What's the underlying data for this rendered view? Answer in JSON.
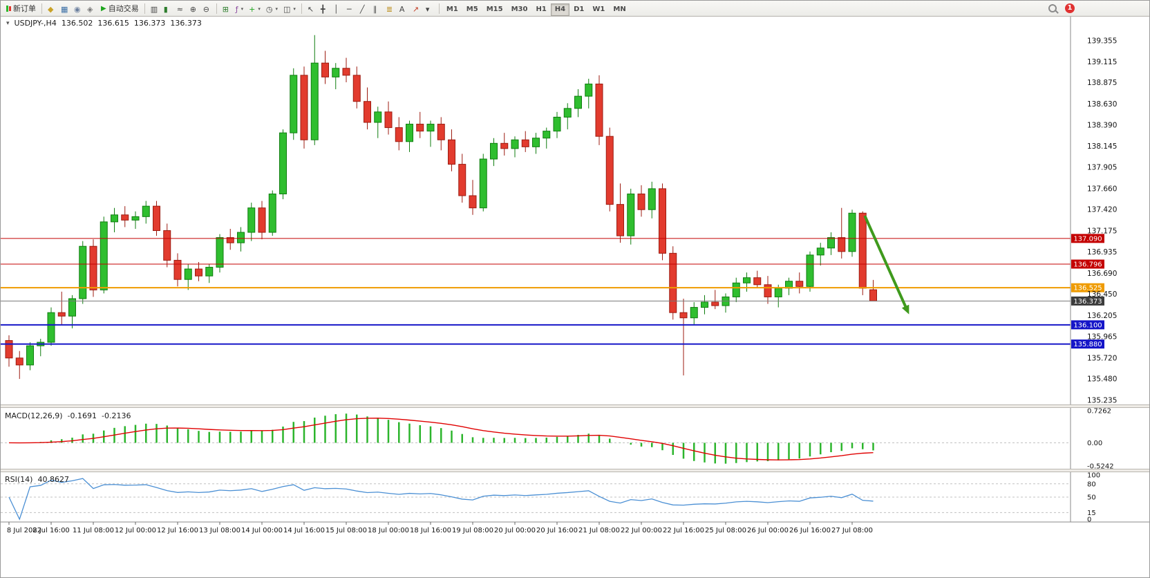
{
  "toolbar": {
    "new_order_label": "新订单",
    "autotrading_label": "自动交易",
    "notification_count": "1",
    "active_timeframe": "H4",
    "timeframes": [
      "M1",
      "M5",
      "M15",
      "M30",
      "H1",
      "H4",
      "D1",
      "W1",
      "MN"
    ],
    "group1": [
      {
        "name": "expert-advisors",
        "glyph": "◆",
        "color": "#c9a227"
      },
      {
        "name": "charts",
        "glyph": "▦",
        "color": "#3a6ea5"
      },
      {
        "name": "market-watch",
        "glyph": "◉",
        "color": "#6b7f9e"
      },
      {
        "name": "navigator",
        "glyph": "◈",
        "color": "#777777"
      }
    ],
    "group2": [
      {
        "name": "bar-chart-type",
        "glyph": "▥",
        "color": "#444444"
      },
      {
        "name": "candlestick-type",
        "glyph": "▮",
        "color": "#2d7d2d"
      },
      {
        "name": "line-chart-type",
        "glyph": "≈",
        "color": "#444444"
      },
      {
        "name": "zoom-in",
        "glyph": "⊕",
        "color": "#444444"
      },
      {
        "name": "zoom-out",
        "glyph": "⊖",
        "color": "#444444"
      }
    ],
    "group3": [
      {
        "name": "tile-windows",
        "glyph": "⊞",
        "color": "#2d7d2d"
      },
      {
        "name": "indicators",
        "glyph": "ƒ",
        "color": "#8a4a9e",
        "dropdown": true
      },
      {
        "name": "add-chart",
        "glyph": "+",
        "color": "#1da51d",
        "dropdown": true
      },
      {
        "name": "periods",
        "glyph": "◷",
        "color": "#444444",
        "dropdown": true
      },
      {
        "name": "templates",
        "glyph": "◫",
        "color": "#444444",
        "dropdown": true
      }
    ],
    "group4": [
      {
        "name": "cursor",
        "glyph": "↖",
        "color": "#444444"
      },
      {
        "name": "crosshair",
        "glyph": "╋",
        "color": "#444444"
      },
      {
        "name": "vertical-line",
        "glyph": "│",
        "color": "#444444"
      },
      {
        "name": "horizontal-line",
        "glyph": "─",
        "color": "#444444"
      },
      {
        "name": "trendline",
        "glyph": "╱",
        "color": "#444444"
      },
      {
        "name": "equidistant-channel",
        "glyph": "∥",
        "color": "#444444"
      },
      {
        "name": "fibonacci",
        "glyph": "≣",
        "color": "#b8860b"
      },
      {
        "name": "text-label",
        "glyph": "A",
        "color": "#444444"
      },
      {
        "name": "arrow-objects",
        "glyph": "↗",
        "color": "#c23b22"
      },
      {
        "name": "more-objects",
        "glyph": "▾",
        "color": "#444444"
      }
    ]
  },
  "chart_header": {
    "marker": "▾",
    "symbol": "USDJPY-,H4",
    "open": "136.502",
    "high": "136.615",
    "low": "136.373",
    "close": "136.373"
  },
  "panels": {
    "macd": {
      "label": "MACD(12,26,9)",
      "value": "-0.1691",
      "signal": "-0.2136",
      "ticks": [
        "0.7262",
        "0.00",
        "-0.5242"
      ],
      "range": [
        -0.5242,
        0.7262
      ],
      "histogram_color": "#2cb52c",
      "signal_color": "#e00000"
    },
    "rsi": {
      "label": "RSI(14)",
      "value": "40.8627",
      "ticks": [
        "100",
        "80",
        "50",
        "15",
        "0"
      ],
      "levels": [
        80,
        50,
        15
      ],
      "range": [
        0,
        100
      ],
      "line_color": "#4a8fd4"
    }
  },
  "price_axis": {
    "ticks": [
      "139.355",
      "139.115",
      "138.875",
      "138.630",
      "138.390",
      "138.145",
      "137.905",
      "137.660",
      "137.420",
      "137.175",
      "136.935",
      "136.690",
      "136.450",
      "136.205",
      "135.965",
      "135.720",
      "135.480",
      "135.235"
    ]
  },
  "time_axis": {
    "candles_per_label": 4,
    "labels": [
      "8 Jul 2022",
      "8 Jul 16:00",
      "11 Jul 08:00",
      "12 Jul 00:00",
      "12 Jul 16:00",
      "13 Jul 08:00",
      "14 Jul 00:00",
      "14 Jul 16:00",
      "15 Jul 08:00",
      "18 Jul 00:00",
      "18 Jul 16:00",
      "19 Jul 08:00",
      "20 Jul 00:00",
      "20 Jul 16:00",
      "21 Jul 08:00",
      "22 Jul 00:00",
      "22 Jul 16:00",
      "25 Jul 08:00",
      "26 Jul 00:00",
      "26 Jul 16:00",
      "27 Jul 08:00"
    ]
  },
  "hlines": [
    {
      "name": "resistance-1",
      "price": 137.09,
      "label": "137.090",
      "color": "#c40000",
      "width": 1,
      "label_bg": "#c40000"
    },
    {
      "name": "resistance-2",
      "price": 136.796,
      "label": "136.796",
      "color": "#c40000",
      "width": 1,
      "label_bg": "#c40000"
    },
    {
      "name": "pivot-orange",
      "price": 136.525,
      "label": "136.525",
      "color": "#ef9b00",
      "width": 2,
      "label_bg": "#ef9b00"
    },
    {
      "name": "bid-line",
      "price": 136.373,
      "label": "136.373",
      "color": "#777777",
      "width": 1,
      "label_bg": "#3c3c3c"
    },
    {
      "name": "support-1",
      "price": 136.1,
      "label": "136.100",
      "color": "#1515c8",
      "width": 2,
      "label_bg": "#1515c8"
    },
    {
      "name": "support-2",
      "price": 135.88,
      "label": "135.880",
      "color": "#1515c8",
      "width": 2,
      "label_bg": "#1515c8"
    }
  ],
  "chart_data": {
    "type": "candlestick",
    "symbol": "USDJPY",
    "timeframe": "H4",
    "price_range": [
      135.235,
      139.355
    ],
    "bull_color": "#2fbe2f",
    "bull_stroke": "#0f7d0f",
    "bear_color": "#e23b2e",
    "bear_stroke": "#9c1b10",
    "arrow": {
      "from_index": 81.2,
      "from_price": 137.35,
      "to_index": 85.4,
      "to_price": 136.22,
      "color": "#3f9a1d"
    },
    "candles": [
      [
        135.92,
        135.98,
        135.62,
        135.72
      ],
      [
        135.72,
        135.8,
        135.48,
        135.64
      ],
      [
        135.64,
        135.9,
        135.58,
        135.86
      ],
      [
        135.86,
        135.94,
        135.74,
        135.9
      ],
      [
        135.9,
        136.3,
        135.86,
        136.24
      ],
      [
        136.24,
        136.48,
        136.1,
        136.2
      ],
      [
        136.2,
        136.44,
        136.06,
        136.4
      ],
      [
        136.4,
        137.06,
        136.34,
        137.0
      ],
      [
        137.0,
        137.08,
        136.42,
        136.5
      ],
      [
        136.5,
        137.34,
        136.46,
        137.28
      ],
      [
        137.28,
        137.44,
        137.16,
        137.36
      ],
      [
        137.36,
        137.46,
        137.22,
        137.3
      ],
      [
        137.3,
        137.4,
        137.2,
        137.34
      ],
      [
        137.34,
        137.52,
        137.26,
        137.46
      ],
      [
        137.46,
        137.52,
        137.12,
        137.18
      ],
      [
        137.18,
        137.26,
        136.76,
        136.84
      ],
      [
        136.84,
        136.92,
        136.54,
        136.62
      ],
      [
        136.62,
        136.8,
        136.5,
        136.74
      ],
      [
        136.74,
        136.82,
        136.6,
        136.66
      ],
      [
        136.66,
        136.8,
        136.58,
        136.76
      ],
      [
        136.76,
        137.14,
        136.7,
        137.1
      ],
      [
        137.1,
        137.2,
        136.96,
        137.04
      ],
      [
        137.04,
        137.22,
        136.94,
        137.16
      ],
      [
        137.16,
        137.5,
        137.06,
        137.44
      ],
      [
        137.44,
        137.52,
        137.08,
        137.16
      ],
      [
        137.16,
        137.64,
        137.12,
        137.6
      ],
      [
        137.6,
        138.34,
        137.54,
        138.3
      ],
      [
        138.3,
        139.04,
        138.22,
        138.96
      ],
      [
        138.96,
        139.06,
        138.12,
        138.22
      ],
      [
        138.22,
        139.42,
        138.16,
        139.1
      ],
      [
        139.1,
        139.24,
        138.86,
        138.94
      ],
      [
        138.94,
        139.1,
        138.8,
        139.04
      ],
      [
        139.04,
        139.16,
        138.88,
        138.96
      ],
      [
        138.96,
        139.06,
        138.58,
        138.66
      ],
      [
        138.66,
        138.82,
        138.34,
        138.42
      ],
      [
        138.42,
        138.6,
        138.24,
        138.54
      ],
      [
        138.54,
        138.66,
        138.28,
        138.36
      ],
      [
        138.36,
        138.48,
        138.1,
        138.2
      ],
      [
        138.2,
        138.44,
        138.08,
        138.4
      ],
      [
        138.4,
        138.54,
        138.24,
        138.32
      ],
      [
        138.32,
        138.44,
        138.14,
        138.4
      ],
      [
        138.4,
        138.48,
        138.1,
        138.22
      ],
      [
        138.22,
        138.34,
        137.86,
        137.94
      ],
      [
        137.94,
        138.06,
        137.5,
        137.58
      ],
      [
        137.58,
        137.76,
        137.36,
        137.44
      ],
      [
        137.44,
        138.06,
        137.4,
        138.0
      ],
      [
        138.0,
        138.24,
        137.92,
        138.18
      ],
      [
        138.18,
        138.3,
        138.04,
        138.12
      ],
      [
        138.12,
        138.26,
        138.02,
        138.22
      ],
      [
        138.22,
        138.32,
        138.08,
        138.14
      ],
      [
        138.14,
        138.3,
        138.06,
        138.24
      ],
      [
        138.24,
        138.36,
        138.12,
        138.32
      ],
      [
        138.32,
        138.54,
        138.24,
        138.48
      ],
      [
        138.48,
        138.64,
        138.34,
        138.58
      ],
      [
        138.58,
        138.8,
        138.48,
        138.72
      ],
      [
        138.72,
        138.92,
        138.58,
        138.86
      ],
      [
        138.86,
        138.96,
        138.16,
        138.26
      ],
      [
        138.26,
        138.36,
        137.4,
        137.48
      ],
      [
        137.48,
        137.72,
        137.04,
        137.12
      ],
      [
        137.12,
        137.66,
        137.02,
        137.6
      ],
      [
        137.6,
        137.7,
        137.34,
        137.42
      ],
      [
        137.42,
        137.74,
        137.32,
        137.66
      ],
      [
        137.66,
        137.72,
        136.84,
        136.92
      ],
      [
        136.92,
        137.0,
        136.16,
        136.24
      ],
      [
        136.24,
        136.4,
        135.52,
        136.18
      ],
      [
        136.18,
        136.36,
        136.1,
        136.3
      ],
      [
        136.3,
        136.44,
        136.22,
        136.36
      ],
      [
        136.36,
        136.5,
        136.28,
        136.32
      ],
      [
        136.32,
        136.46,
        136.24,
        136.42
      ],
      [
        136.42,
        136.64,
        136.36,
        136.58
      ],
      [
        136.58,
        136.7,
        136.48,
        136.64
      ],
      [
        136.64,
        136.72,
        136.52,
        136.56
      ],
      [
        136.56,
        136.66,
        136.34,
        136.42
      ],
      [
        136.42,
        136.56,
        136.3,
        136.52
      ],
      [
        136.52,
        136.64,
        136.44,
        136.6
      ],
      [
        136.6,
        136.7,
        136.46,
        136.54
      ],
      [
        136.54,
        136.94,
        136.48,
        136.9
      ],
      [
        136.9,
        137.04,
        136.78,
        136.98
      ],
      [
        136.98,
        137.16,
        136.9,
        137.1
      ],
      [
        137.1,
        137.44,
        136.86,
        136.94
      ],
      [
        136.94,
        137.42,
        136.88,
        137.38
      ],
      [
        137.38,
        137.4,
        136.44,
        136.52
      ],
      [
        136.502,
        136.615,
        136.373,
        136.373
      ]
    ]
  }
}
